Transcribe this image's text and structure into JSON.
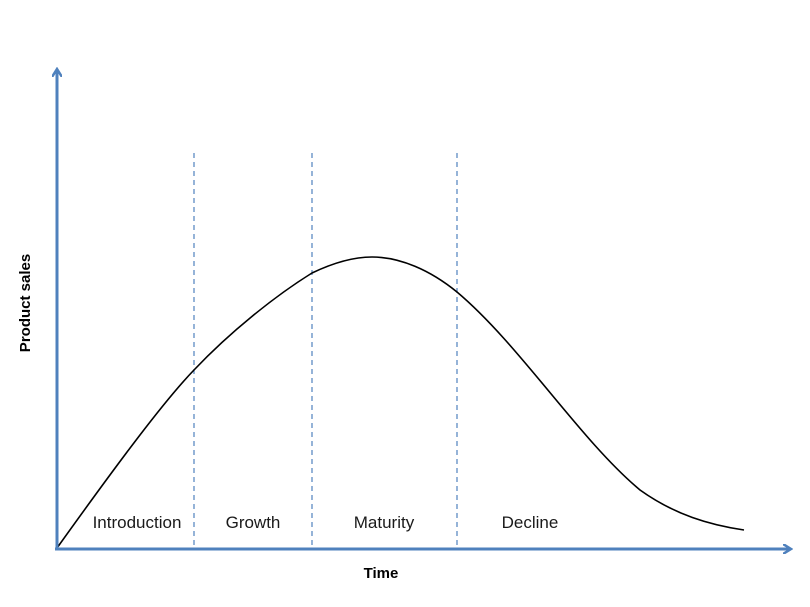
{
  "diagram": {
    "x_axis_label": "Time",
    "y_axis_label": "Product sales",
    "stages": [
      {
        "label": "Introduction"
      },
      {
        "label": "Growth"
      },
      {
        "label": "Maturity"
      },
      {
        "label": "Decline"
      }
    ],
    "colors": {
      "axis": "#4f81bd",
      "divider": "#4f81bd",
      "curve": "#000000"
    }
  }
}
